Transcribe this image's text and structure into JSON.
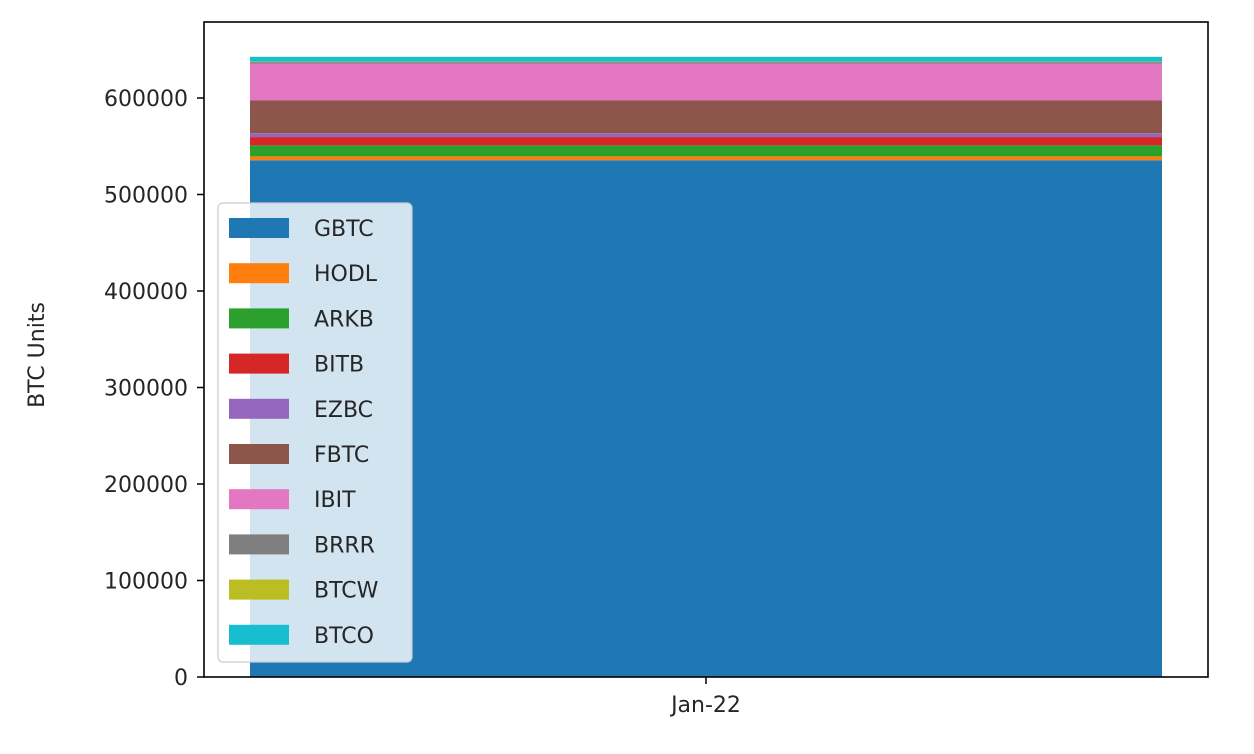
{
  "chart_data": {
    "type": "area",
    "stacked": true,
    "title": "",
    "xlabel": "",
    "ylabel": "BTC Units",
    "categories": [
      "Jan-22"
    ],
    "ylim": [
      0,
      655000
    ],
    "yticks": [
      0,
      100000,
      200000,
      300000,
      400000,
      500000,
      600000
    ],
    "ytick_labels": [
      "0",
      "100000",
      "200000",
      "300000",
      "400000",
      "500000",
      "600000"
    ],
    "grid": false,
    "legend_position": "lower-left",
    "series": [
      {
        "name": "GBTC",
        "color": "#1f77b4",
        "values": [
          535500
        ]
      },
      {
        "name": "HODL",
        "color": "#ff7f0e",
        "values": [
          4000
        ]
      },
      {
        "name": "ARKB",
        "color": "#2ca02c",
        "values": [
          11400
        ]
      },
      {
        "name": "BITB",
        "color": "#d62728",
        "values": [
          8600
        ]
      },
      {
        "name": "EZBC",
        "color": "#9467bd",
        "values": [
          4000
        ]
      },
      {
        "name": "FBTC",
        "color": "#8c564b",
        "values": [
          33900
        ]
      },
      {
        "name": "IBIT",
        "color": "#e377c2",
        "values": [
          38300
        ]
      },
      {
        "name": "BRRR",
        "color": "#7f7f7f",
        "values": [
          1500
        ]
      },
      {
        "name": "BTCW",
        "color": "#bcbd22",
        "values": [
          500
        ]
      },
      {
        "name": "BTCO",
        "color": "#17becf",
        "values": [
          5000
        ]
      }
    ]
  }
}
